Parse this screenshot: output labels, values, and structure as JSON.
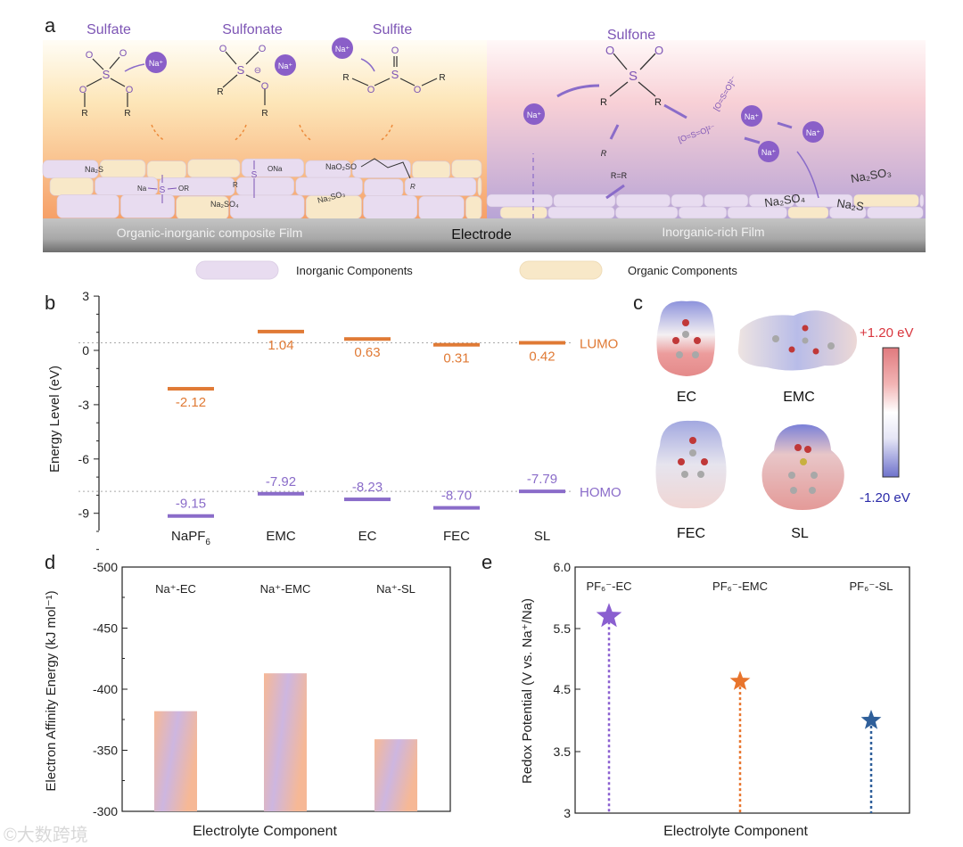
{
  "panel_labels": {
    "a": "a",
    "b": "b",
    "c": "c",
    "d": "d",
    "e": "e"
  },
  "panel_a": {
    "species": {
      "sulfate": "Sulfate",
      "sulfonate": "Sulfonate",
      "sulfite": "Sulfite",
      "sulfone": "Sulfone"
    },
    "atoms": {
      "S": "S",
      "O": "O",
      "R": "R",
      "na_ion": "Na⁺",
      "minus": "⊖",
      "r_eq_r": "R=R",
      "ona": "ONa",
      "or": "OR",
      "na": "Na",
      "nao2so": "NaO₂SO",
      "so2_ion": "[O=S=O]²⁻"
    },
    "film_species": {
      "na2s": "Na₂S",
      "na2so4": "Na₂SO₄",
      "na2so3": "Na₂SO₃"
    },
    "film_left_label": "Organic-inorganic composite Film",
    "electrode_label": "Electrode",
    "film_right_label": "Inorganic-rich Film",
    "legend": [
      {
        "label": "Inorganic Components",
        "color": "#e8dcf0"
      },
      {
        "label": "Organic Components",
        "color": "#f8e8c8"
      }
    ]
  },
  "chart_data": [
    {
      "panel": "b",
      "type": "bar",
      "title": "",
      "ylabel": "Energy Level (eV)",
      "ylim": [
        -10,
        3
      ],
      "yticks": [
        "3",
        "0",
        "-3",
        "-6",
        "-9"
      ],
      "ytick_values": [
        3,
        0,
        -3,
        -6,
        -9
      ],
      "categories": [
        {
          "main": "NaPF",
          "sub": "6"
        },
        {
          "main": "EMC",
          "sub": ""
        },
        {
          "main": "EC",
          "sub": ""
        },
        {
          "main": "FEC",
          "sub": ""
        },
        {
          "main": "SL",
          "sub": ""
        }
      ],
      "series": [
        {
          "name": "LUMO",
          "color": "#e07a35",
          "values": [
            -2.12,
            1.04,
            0.63,
            0.31,
            0.42
          ],
          "labels": [
            "-2.12",
            "1.04",
            "0.63",
            "0.31",
            "0.42"
          ]
        },
        {
          "name": "HOMO",
          "color": "#8a6cc9",
          "values": [
            -9.15,
            -7.92,
            -8.23,
            -8.7,
            -7.79
          ],
          "labels": [
            "-9.15",
            "-7.92",
            "-8.23",
            "-8.70",
            "-7.79"
          ]
        }
      ],
      "reference_lines": [
        {
          "name": "LUMO",
          "value": 0.42
        },
        {
          "name": "HOMO",
          "value": -7.79
        }
      ]
    },
    {
      "panel": "d",
      "type": "bar",
      "xlabel": "Electrolyte Component",
      "ylabel": "Electron Affinity Energy (kJ mol⁻¹)",
      "ylim": [
        -300,
        -500
      ],
      "yticks": [
        "-500",
        "-450",
        "-400",
        "-350",
        "-300"
      ],
      "ytick_values": [
        -500,
        -450,
        -400,
        -350,
        -300
      ],
      "categories": [
        "Na⁺-EC",
        "Na⁺-EMC",
        "Na⁺-SL"
      ],
      "values": [
        -382,
        -413,
        -359
      ]
    },
    {
      "panel": "e",
      "type": "scatter",
      "xlabel": "Electrolyte Component",
      "ylabel": "Redox Potential (V vs. Na⁺/Na)",
      "yticks": [
        "6.0",
        "5.5",
        "4.5",
        "3.5",
        "3"
      ],
      "ytick_values": [
        6.0,
        5.5,
        4.5,
        3.5,
        3
      ],
      "categories": [
        "PF₆⁻-EC",
        "PF₆⁻-EMC",
        "PF₆⁻-SL"
      ],
      "values": [
        5.6,
        4.63,
        4.0
      ],
      "colors": [
        "#8a5fd0",
        "#e8742c",
        "#2f5f9a"
      ]
    }
  ],
  "panel_c": {
    "molecules": [
      "EC",
      "EMC",
      "FEC",
      "SL"
    ],
    "colorbar": {
      "max_label": "+1.20 eV",
      "min_label": "-1.20 eV",
      "max_color": "#d9363e",
      "min_color": "#2a2aa8"
    }
  },
  "watermark": "©大数跨境"
}
